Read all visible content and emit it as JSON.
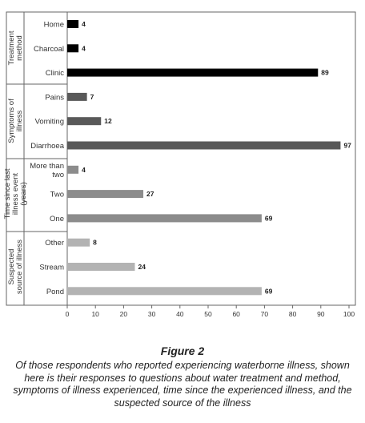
{
  "chart_data": {
    "type": "bar",
    "orientation": "horizontal",
    "title": "",
    "xlabel": "",
    "ylabel": "",
    "xlim": [
      0,
      100
    ],
    "xticks": [
      0,
      10,
      20,
      30,
      40,
      50,
      60,
      70,
      80,
      90,
      100
    ],
    "grid": false,
    "legend": "none",
    "groups": [
      {
        "label": "Treatment method",
        "color": "#000000",
        "bars": [
          {
            "category": "Home",
            "value": 4
          },
          {
            "category": "Charcoal",
            "value": 4
          },
          {
            "category": "Clinic",
            "value": 89
          }
        ]
      },
      {
        "label": "Symptoms of illness",
        "color": "#595959",
        "bars": [
          {
            "category": "Pains",
            "value": 7
          },
          {
            "category": "Vomiting",
            "value": 12
          },
          {
            "category": "Diarrhoea",
            "value": 97
          }
        ]
      },
      {
        "label": "Time since last illness event (years)",
        "color": "#8c8c8c",
        "bars": [
          {
            "category": "More than two",
            "value": 4
          },
          {
            "category": "Two",
            "value": 27
          },
          {
            "category": "One",
            "value": 69
          }
        ]
      },
      {
        "label": "Suspected source of illness",
        "color": "#b3b3b3",
        "bars": [
          {
            "category": "Other",
            "value": 8
          },
          {
            "category": "Stream",
            "value": 24
          },
          {
            "category": "Pond",
            "value": 69
          }
        ]
      }
    ]
  },
  "caption": {
    "title": "Figure 2",
    "text": "Of those respondents who reported experiencing waterborne illness, shown here is their responses to questions about water treatment and method, symptoms of illness experienced, time since the experienced illness, and the suspected source of the illness"
  }
}
